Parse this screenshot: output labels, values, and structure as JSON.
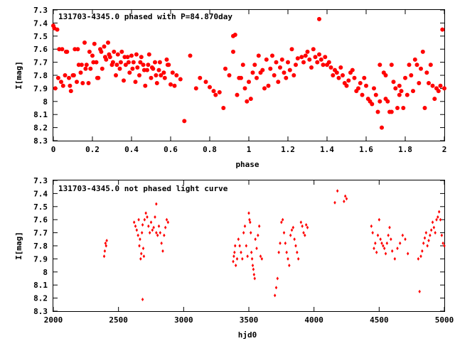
{
  "chart_data": [
    {
      "type": "scatter",
      "title": "131703-4345.0 phased with P=84.870day",
      "xlabel": "phase",
      "ylabel": "I[mag]",
      "xlim": [
        0,
        2
      ],
      "ylim": [
        8.3,
        7.3
      ],
      "y_inverted": true,
      "xticks": [
        0,
        0.2,
        0.4,
        0.6,
        0.8,
        1,
        1.2,
        1.4,
        1.6,
        1.8,
        2
      ],
      "xtick_labels": [
        "0",
        "0.2",
        "0.4",
        "0.6",
        "0.8",
        "1",
        "1.2",
        "1.4",
        "1.6",
        "1.8",
        "2"
      ],
      "yticks": [
        7.3,
        7.4,
        7.5,
        7.6,
        7.7,
        7.8,
        7.9,
        8,
        8.1,
        8.2,
        8.3
      ],
      "ytick_labels": [
        "7.3",
        "7.4",
        "7.5",
        "7.6",
        "7.7",
        "7.8",
        "7.9",
        "8",
        "8.1",
        "8.2",
        "8.3"
      ],
      "marker_color": "#ff0000",
      "series": [
        {
          "x": [
            0.0,
            0.01,
            0.02,
            0.03,
            0.04,
            0.05,
            0.06,
            0.07,
            0.08,
            0.09,
            0.1,
            0.11,
            0.12,
            0.13,
            0.14,
            0.15,
            0.16,
            0.17,
            0.18,
            0.19,
            0.2,
            0.21,
            0.22,
            0.23,
            0.24,
            0.25,
            0.26,
            0.27,
            0.28,
            0.29,
            0.3,
            0.31,
            0.32,
            0.33,
            0.34,
            0.35,
            0.36,
            0.37,
            0.38,
            0.39,
            0.4,
            0.41,
            0.42,
            0.43,
            0.44,
            0.45,
            0.46,
            0.47,
            0.48,
            0.49,
            0.5,
            0.51,
            0.52,
            0.53,
            0.54,
            0.55,
            0.57,
            0.58,
            0.59,
            0.6,
            0.61,
            0.62,
            0.63,
            0.65,
            0.67,
            0.7,
            0.73,
            0.75,
            0.78,
            0.8,
            0.82,
            0.83,
            0.85,
            0.87,
            0.88,
            0.9,
            0.92,
            0.93,
            0.94,
            0.95,
            0.97,
            0.98,
            0.99,
            1.0,
            1.01,
            1.02,
            1.03,
            1.04,
            1.05,
            1.06,
            1.07,
            1.08,
            1.09,
            1.1,
            1.11,
            1.12,
            1.13,
            1.14,
            1.15,
            1.16,
            1.17,
            1.18,
            1.19,
            1.2,
            1.21,
            1.22,
            1.23,
            1.24,
            1.25,
            1.27,
            1.28,
            1.29,
            1.3,
            1.31,
            1.32,
            1.33,
            1.34,
            1.35,
            1.36,
            1.37,
            1.38,
            1.39,
            1.4,
            1.41,
            1.42,
            1.43,
            1.44,
            1.45,
            1.46,
            1.47,
            1.48,
            1.49,
            1.5,
            1.51,
            1.52,
            1.53,
            1.54,
            1.55,
            1.56,
            1.57,
            1.58,
            1.59,
            1.6,
            1.61,
            1.62,
            1.63,
            1.64,
            1.65,
            1.66,
            1.67,
            1.68,
            1.69,
            1.7,
            1.71,
            1.72,
            1.73,
            1.74,
            1.75,
            1.76,
            1.77,
            1.78,
            1.79,
            1.8,
            1.81,
            1.82,
            1.83,
            1.84,
            1.85,
            1.86,
            1.87,
            1.88,
            1.89,
            1.9,
            1.91,
            1.92,
            1.93,
            1.94,
            1.95,
            1.96,
            1.97,
            1.98,
            1.99,
            2.0,
            0.005,
            0.025,
            0.045,
            0.065,
            0.085,
            0.105,
            0.125,
            0.145,
            0.165,
            0.185,
            0.205,
            0.225,
            0.245,
            0.265,
            0.285,
            0.305,
            0.325,
            0.345,
            0.365,
            0.385,
            0.405,
            0.425,
            0.445,
            0.465,
            0.485,
            0.505,
            0.525,
            0.545,
            0.565,
            0.585,
            0.92,
            0.96,
            1.36,
            1.7,
            1.73,
            1.77,
            1.67
          ],
          "y": [
            7.42,
            7.9,
            7.45,
            7.6,
            7.85,
            7.88,
            7.8,
            7.62,
            7.82,
            7.92,
            7.8,
            7.6,
            7.85,
            7.72,
            7.78,
            7.86,
            7.55,
            7.72,
            7.86,
            7.75,
            7.65,
            7.56,
            7.7,
            7.82,
            7.6,
            7.75,
            7.58,
            7.68,
            7.55,
            7.66,
            7.72,
            7.62,
            7.8,
            7.64,
            7.75,
            7.62,
            7.84,
            7.72,
            7.66,
            7.78,
            7.65,
            7.7,
            7.85,
            7.74,
            7.8,
            7.66,
            7.72,
            7.88,
            7.76,
            7.64,
            7.82,
            7.75,
            7.7,
            7.86,
            7.76,
            7.8,
            7.82,
            7.68,
            7.72,
            7.87,
            7.78,
            7.88,
            7.8,
            7.83,
            8.15,
            7.65,
            7.9,
            7.82,
            7.85,
            7.89,
            7.92,
            7.95,
            7.93,
            8.05,
            7.75,
            7.8,
            7.62,
            7.49,
            7.95,
            7.82,
            7.72,
            7.9,
            8.0,
            7.85,
            7.98,
            7.78,
            7.72,
            7.82,
            7.65,
            7.78,
            7.76,
            7.9,
            7.68,
            7.88,
            7.75,
            7.65,
            7.8,
            7.7,
            7.85,
            7.74,
            7.68,
            7.78,
            7.82,
            7.7,
            7.76,
            7.6,
            7.8,
            7.72,
            7.67,
            7.66,
            7.7,
            7.65,
            7.62,
            7.68,
            7.74,
            7.6,
            7.66,
            7.7,
            7.64,
            7.68,
            7.72,
            7.66,
            7.72,
            7.7,
            7.74,
            7.8,
            7.76,
            7.78,
            7.82,
            7.74,
            7.8,
            7.86,
            7.88,
            7.84,
            7.78,
            7.76,
            7.82,
            7.92,
            7.9,
            7.86,
            7.95,
            7.82,
            7.88,
            7.98,
            8.0,
            8.02,
            7.9,
            7.95,
            8.08,
            7.72,
            8.2,
            7.78,
            7.98,
            8.0,
            8.08,
            7.72,
            7.85,
            7.9,
            8.05,
            7.88,
            7.92,
            8.05,
            7.82,
            7.95,
            7.72,
            7.8,
            7.92,
            7.68,
            7.72,
            7.86,
            7.75,
            7.62,
            8.05,
            7.78,
            7.86,
            7.72,
            7.88,
            7.98,
            7.9,
            7.92,
            7.88,
            7.45,
            7.9,
            7.44,
            7.82,
            7.6,
            7.62,
            7.88,
            7.8,
            7.6,
            7.72,
            7.75,
            7.62,
            7.7,
            7.82,
            7.62,
            7.66,
            7.64,
            7.7,
            7.72,
            7.7,
            7.66,
            7.7,
            7.75,
            7.64,
            7.7,
            7.76,
            7.72,
            7.74,
            7.8,
            7.7,
            7.78,
            7.72,
            7.5,
            7.82,
            7.37,
            7.8,
            8.08,
            7.95,
            8.0
          ]
        }
      ]
    },
    {
      "type": "scatter",
      "title": "131703-4345.0 not phased light curve",
      "xlabel": "hjd0",
      "ylabel": "I[mag]",
      "xlim": [
        2000,
        5000
      ],
      "ylim": [
        8.3,
        7.3
      ],
      "y_inverted": true,
      "xticks": [
        2000,
        2500,
        3000,
        3500,
        4000,
        4500,
        5000
      ],
      "xtick_labels": [
        "2000",
        "2500",
        "3000",
        "3500",
        "4000",
        "4500",
        "5000"
      ],
      "yticks": [
        7.3,
        7.4,
        7.5,
        7.6,
        7.7,
        7.8,
        7.9,
        8,
        8.1,
        8.2,
        8.3
      ],
      "ytick_labels": [
        "7.3",
        "7.4",
        "7.5",
        "7.6",
        "7.7",
        "7.8",
        "7.9",
        "8",
        "8.1",
        "8.2",
        "8.3"
      ],
      "marker_color": "#ff0000",
      "series": [
        {
          "x": [
            2390,
            2395,
            2400,
            2405,
            2410,
            2620,
            2630,
            2640,
            2650,
            2655,
            2660,
            2665,
            2670,
            2675,
            2680,
            2685,
            2690,
            2695,
            2700,
            2710,
            2720,
            2730,
            2740,
            2750,
            2760,
            2770,
            2780,
            2790,
            2800,
            2810,
            2820,
            2830,
            2840,
            2850,
            2860,
            2870,
            2880,
            2685,
            2790,
            3380,
            3385,
            3390,
            3395,
            3400,
            3410,
            3420,
            3430,
            3440,
            3450,
            3460,
            3470,
            3480,
            3490,
            3500,
            3505,
            3510,
            3515,
            3520,
            3525,
            3530,
            3535,
            3540,
            3545,
            3550,
            3560,
            3570,
            3580,
            3590,
            3600,
            3700,
            3710,
            3720,
            3730,
            3740,
            3750,
            3760,
            3770,
            3780,
            3790,
            3800,
            3810,
            3820,
            3830,
            3840,
            3850,
            3860,
            3870,
            3880,
            3900,
            3910,
            3920,
            3930,
            3940,
            3950,
            4160,
            4180,
            4230,
            4240,
            4250,
            4440,
            4450,
            4460,
            4470,
            4480,
            4490,
            4500,
            4510,
            4520,
            4530,
            4540,
            4550,
            4560,
            4570,
            4580,
            4590,
            4600,
            4620,
            4640,
            4660,
            4680,
            4700,
            4720,
            4800,
            4810,
            4820,
            4830,
            4840,
            4850,
            4860,
            4870,
            4880,
            4890,
            4900,
            4910,
            4920,
            4930,
            4940,
            4950,
            4960,
            4970,
            4980,
            4990,
            5000
          ],
          "y": [
            7.88,
            7.84,
            7.78,
            7.8,
            7.76,
            7.62,
            7.65,
            7.68,
            7.72,
            7.6,
            7.8,
            7.75,
            7.9,
            7.86,
            7.7,
            7.64,
            7.82,
            7.88,
            7.6,
            7.55,
            7.58,
            7.65,
            7.7,
            7.62,
            7.68,
            7.66,
            7.58,
            7.48,
            7.72,
            7.65,
            7.7,
            7.78,
            7.84,
            7.72,
            7.66,
            7.6,
            7.62,
            8.21,
            7.7,
            7.92,
            7.88,
            7.85,
            7.8,
            7.95,
            7.9,
            7.75,
            7.8,
            7.85,
            7.9,
            7.7,
            7.65,
            7.8,
            7.88,
            7.55,
            7.6,
            7.62,
            7.7,
            7.85,
            7.9,
            7.95,
            7.98,
            8.02,
            8.05,
            7.75,
            7.82,
            7.72,
            7.65,
            7.88,
            7.9,
            8.18,
            8.12,
            8.05,
            7.85,
            7.78,
            7.62,
            7.6,
            7.7,
            7.78,
            7.85,
            7.9,
            7.95,
            7.72,
            7.68,
            7.66,
            7.75,
            7.8,
            7.85,
            7.9,
            7.62,
            7.65,
            7.7,
            7.72,
            7.64,
            7.66,
            7.47,
            7.38,
            7.46,
            7.42,
            7.44,
            7.65,
            7.7,
            7.82,
            7.78,
            7.85,
            7.72,
            7.6,
            7.75,
            7.78,
            7.8,
            7.82,
            7.86,
            7.78,
            7.72,
            7.66,
            7.75,
            7.84,
            7.9,
            7.82,
            7.78,
            7.72,
            7.75,
            7.86,
            7.9,
            8.15,
            7.88,
            7.84,
            7.78,
            7.74,
            7.7,
            7.8,
            7.76,
            7.72,
            7.68,
            7.62,
            7.66,
            7.7,
            7.6,
            7.58,
            7.54,
            7.6,
            7.72,
            7.78,
            7.8
          ]
        }
      ]
    }
  ]
}
